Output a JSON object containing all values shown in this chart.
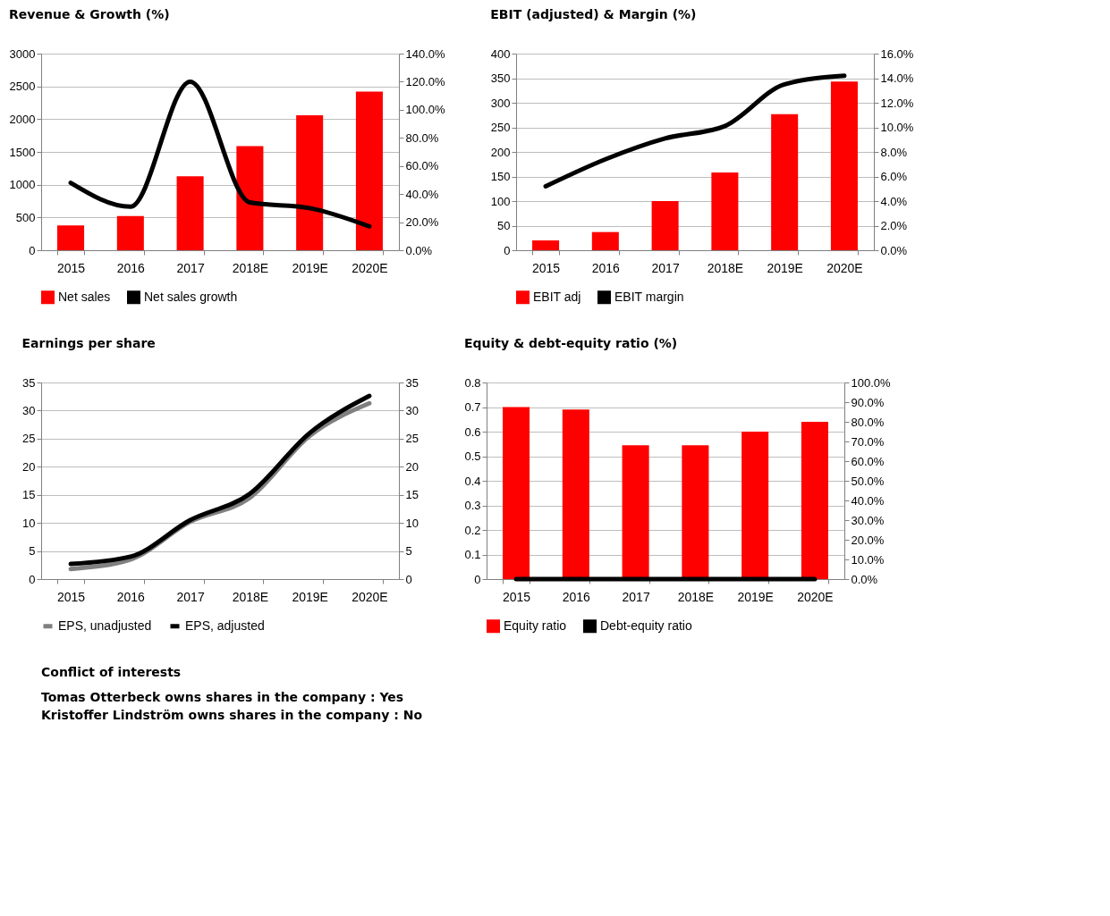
{
  "chart_data": [
    {
      "type": "bar",
      "title": "Revenue & Growth (%)",
      "categories": [
        "2015",
        "2016",
        "2017",
        "2018E",
        "2019E",
        "2020E"
      ],
      "series": [
        {
          "name": "Net sales",
          "type": "bar",
          "color": "#ff0000",
          "values": [
            380,
            520,
            1130,
            1590,
            2060,
            2420
          ]
        },
        {
          "name": "Net sales growth",
          "type": "line",
          "axis": "y2",
          "color": "#000000",
          "values": [
            48,
            31,
            120,
            34,
            30,
            17
          ]
        }
      ],
      "ylim": [
        0,
        3000
      ],
      "yticks": [
        0,
        500,
        1000,
        1500,
        2000,
        2500,
        3000
      ],
      "y2lim": [
        0,
        140
      ],
      "y2ticks": [
        {
          "value": 0,
          "label": "0.0%"
        },
        {
          "value": 20,
          "label": "20.0%"
        },
        {
          "value": 40,
          "label": "40.0%"
        },
        {
          "value": 60,
          "label": "60.0%"
        },
        {
          "value": 80,
          "label": "80.0%"
        },
        {
          "value": 100,
          "label": "100.0%"
        },
        {
          "value": 120,
          "label": "120.0%"
        },
        {
          "value": 140,
          "label": "140.0%"
        }
      ],
      "grid": "y",
      "legend": "bottom"
    },
    {
      "type": "bar",
      "title": "EBIT (adjusted) & Margin (%)",
      "categories": [
        "2015",
        "2016",
        "2017",
        "2018E",
        "2019E",
        "2020E"
      ],
      "series": [
        {
          "name": "EBIT adj",
          "type": "bar",
          "color": "#ff0000",
          "values": [
            20,
            37,
            100,
            158,
            277,
            343
          ]
        },
        {
          "name": "EBIT margin",
          "type": "line",
          "axis": "y2",
          "color": "#000000",
          "values": [
            5.2,
            7.4,
            9.1,
            10.1,
            13.5,
            14.2
          ]
        }
      ],
      "ylim": [
        0,
        400
      ],
      "yticks": [
        0,
        50,
        100,
        150,
        200,
        250,
        300,
        350,
        400
      ],
      "y2lim": [
        0,
        16
      ],
      "y2ticks": [
        {
          "value": 0,
          "label": "0.0%"
        },
        {
          "value": 2,
          "label": "2.0%"
        },
        {
          "value": 4,
          "label": "4.0%"
        },
        {
          "value": 6,
          "label": "6.0%"
        },
        {
          "value": 8,
          "label": "8.0%"
        },
        {
          "value": 10,
          "label": "10.0%"
        },
        {
          "value": 12,
          "label": "12.0%"
        },
        {
          "value": 14,
          "label": "14.0%"
        },
        {
          "value": 16,
          "label": "16.0%"
        }
      ],
      "grid": "y",
      "legend": "bottom"
    },
    {
      "type": "line",
      "title": "Earnings per share",
      "categories": [
        "2015",
        "2016",
        "2017",
        "2018E",
        "2019E",
        "2020E"
      ],
      "series": [
        {
          "name": "EPS, unadjusted",
          "color": "#808080",
          "values": [
            1.8,
            3.5,
            10.2,
            14.5,
            25.5,
            31.3
          ]
        },
        {
          "name": "EPS, adjusted",
          "color": "#000000",
          "values": [
            2.7,
            4.0,
            10.5,
            15.2,
            26.0,
            32.6
          ]
        }
      ],
      "ylim": [
        0,
        35
      ],
      "yticks": [
        0,
        5,
        10,
        15,
        20,
        25,
        30,
        35
      ],
      "y2lim": [
        0,
        35
      ],
      "y2ticks": [
        0,
        5,
        10,
        15,
        20,
        25,
        30,
        35
      ],
      "grid": "y",
      "legend": "bottom"
    },
    {
      "type": "bar",
      "title": "Equity & debt-equity ratio (%)",
      "categories": [
        "2015",
        "2016",
        "2017",
        "2018E",
        "2019E",
        "2020E"
      ],
      "series": [
        {
          "name": "Equity ratio",
          "type": "bar",
          "color": "#ff0000",
          "values": [
            0.7,
            0.69,
            0.545,
            0.545,
            0.6,
            0.64
          ]
        },
        {
          "name": "Debt-equity ratio",
          "type": "line",
          "axis": "y2",
          "color": "#000000",
          "values": [
            0,
            0,
            0,
            0,
            0,
            0
          ]
        }
      ],
      "ylim": [
        0,
        0.8
      ],
      "yticks": [
        0,
        0.1,
        0.2,
        0.3,
        0.4,
        0.5,
        0.6,
        0.7,
        0.8
      ],
      "y2lim": [
        0,
        100
      ],
      "y2ticks": [
        {
          "value": 0,
          "label": "0.0%"
        },
        {
          "value": 10,
          "label": "10.0%"
        },
        {
          "value": 20,
          "label": "20.0%"
        },
        {
          "value": 30,
          "label": "30.0%"
        },
        {
          "value": 40,
          "label": "40.0%"
        },
        {
          "value": 50,
          "label": "50.0%"
        },
        {
          "value": 60,
          "label": "60.0%"
        },
        {
          "value": 70,
          "label": "70.0%"
        },
        {
          "value": 80,
          "label": "80.0%"
        },
        {
          "value": 90,
          "label": "90.0%"
        },
        {
          "value": 100,
          "label": "100.0%"
        }
      ],
      "grid": "y",
      "legend": "bottom"
    },
    {
      "type": "other",
      "title": "Conflict of interests",
      "annotations": [
        "Tomas Otterbeck owns shares in the company : Yes",
        "Kristoffer Lindström owns shares in the company : No"
      ]
    }
  ]
}
